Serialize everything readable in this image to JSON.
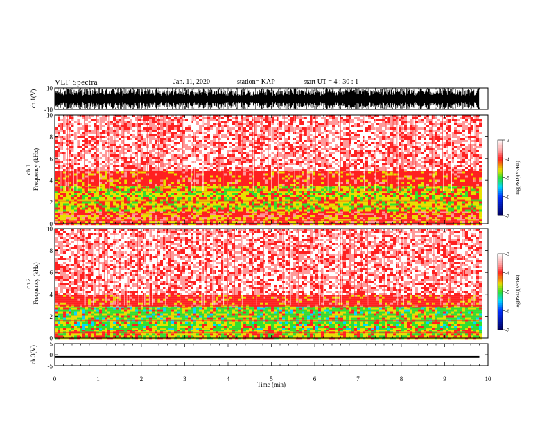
{
  "header": {
    "title": "VLF Spectra",
    "date": "Jan. 11, 2020",
    "station": "station= KAP",
    "start": "start UT =  4 : 30 : 1"
  },
  "chart_data": [
    {
      "type": "line",
      "panel": "waveform-ch1",
      "ylabel": "ch.1(V)",
      "ylim": [
        -10,
        10
      ],
      "yticks": [
        "10",
        "-10"
      ],
      "x_range_min": [
        0,
        9.8
      ],
      "note_values": "dense broadband waveform filling most of the range"
    },
    {
      "type": "heatmap",
      "panel": "spectrogram-ch1",
      "ylabel_line1": "ch.1",
      "ylabel_line2": "Frequency (kHz)",
      "ylim": [
        0,
        10
      ],
      "yticks": [
        "0",
        "2",
        "4",
        "6",
        "8",
        "10"
      ],
      "xlim": [
        0,
        10
      ],
      "data_end_min": 9.8,
      "colorbar": {
        "label": "log(PSD)(V²/Hz)",
        "ticks": [
          "-3",
          "-4",
          "-5",
          "-6",
          "-7"
        ],
        "range": [
          -7,
          -3
        ]
      },
      "bands": [
        {
          "from_khz": 0.0,
          "to_khz": 1.2,
          "level": "mixed-red-yellow"
        },
        {
          "from_khz": 1.2,
          "to_khz": 3.6,
          "level": "yellow"
        },
        {
          "from_khz": 3.6,
          "to_khz": 5.0,
          "level": "red"
        },
        {
          "from_khz": 5.0,
          "to_khz": 10.0,
          "level": "light-red"
        }
      ]
    },
    {
      "type": "heatmap",
      "panel": "spectrogram-ch2",
      "ylabel_line1": "ch.2",
      "ylabel_line2": "Frequency (kHz)",
      "ylim": [
        0,
        10
      ],
      "yticks": [
        "0",
        "2",
        "4",
        "6",
        "8",
        "10"
      ],
      "xlim": [
        0,
        10
      ],
      "data_end_min": 9.8,
      "colorbar": {
        "label": "log(PSD)(V²/Hz)",
        "ticks": [
          "-3",
          "-4",
          "-5",
          "-6",
          "-7"
        ],
        "range": [
          -7,
          -3
        ]
      },
      "bands": [
        {
          "from_khz": 0.0,
          "to_khz": 0.8,
          "level": "yellow"
        },
        {
          "from_khz": 0.8,
          "to_khz": 3.0,
          "level": "green"
        },
        {
          "from_khz": 3.0,
          "to_khz": 4.0,
          "level": "red"
        },
        {
          "from_khz": 4.0,
          "to_khz": 10.0,
          "level": "light-red"
        }
      ]
    },
    {
      "type": "line",
      "panel": "waveform-ch3",
      "ylabel": "ch.3(V)",
      "ylim": [
        -5,
        5
      ],
      "yticks": [
        "5",
        "0",
        "-5"
      ],
      "note_values": "narrow band around -1 V"
    }
  ],
  "xaxis": {
    "label": "Time (min)",
    "ticks": [
      "0",
      "1",
      "2",
      "3",
      "4",
      "5",
      "6",
      "7",
      "8",
      "9",
      "10"
    ],
    "range": [
      0,
      10
    ]
  },
  "colors": {
    "white": "#ffffff",
    "light_red": "#ff9a9a",
    "red": "#ff2020",
    "yellow": "#e8e000",
    "green": "#30e030",
    "cyan": "#00d8ff",
    "blue": "#0030ff",
    "navy": "#000060"
  }
}
